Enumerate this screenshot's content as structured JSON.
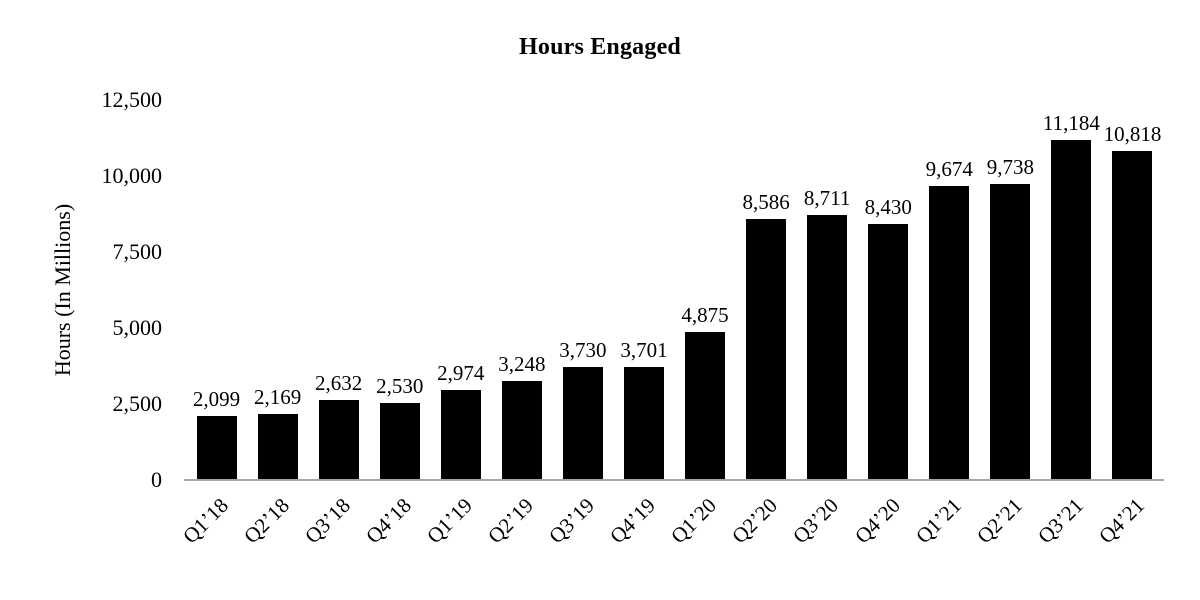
{
  "chart_data": {
    "type": "bar",
    "title": "Hours Engaged",
    "ylabel": "Hours (In Millions)",
    "xlabel": "",
    "categories": [
      "Q1’18",
      "Q2’18",
      "Q3’18",
      "Q4’18",
      "Q1’19",
      "Q2’19",
      "Q3’19",
      "Q4’19",
      "Q1’20",
      "Q2’20",
      "Q3’20",
      "Q4’20",
      "Q1’21",
      "Q2’21",
      "Q3’21",
      "Q4’21"
    ],
    "values": [
      2099,
      2169,
      2632,
      2530,
      2974,
      3248,
      3730,
      3701,
      4875,
      8586,
      8711,
      8430,
      9674,
      9738,
      11184,
      10818
    ],
    "value_labels": [
      "2,099",
      "2,169",
      "2,632",
      "2,530",
      "2,974",
      "3,248",
      "3,730",
      "3,701",
      "4,875",
      "8,586",
      "8,711",
      "8,430",
      "9,674",
      "9,738",
      "11,184",
      "10,818"
    ],
    "ylim": [
      0,
      12500
    ],
    "yticks": [
      0,
      2500,
      5000,
      7500,
      10000,
      12500
    ],
    "ytick_labels": [
      "0",
      "2,500",
      "5,000",
      "7,500",
      "10,000",
      "12,500"
    ],
    "grid": false,
    "legend_position": "none",
    "bar_color": "#000000",
    "axis_color": "#a6a6a6",
    "text_color": "#000000",
    "background_color": "#ffffff"
  }
}
